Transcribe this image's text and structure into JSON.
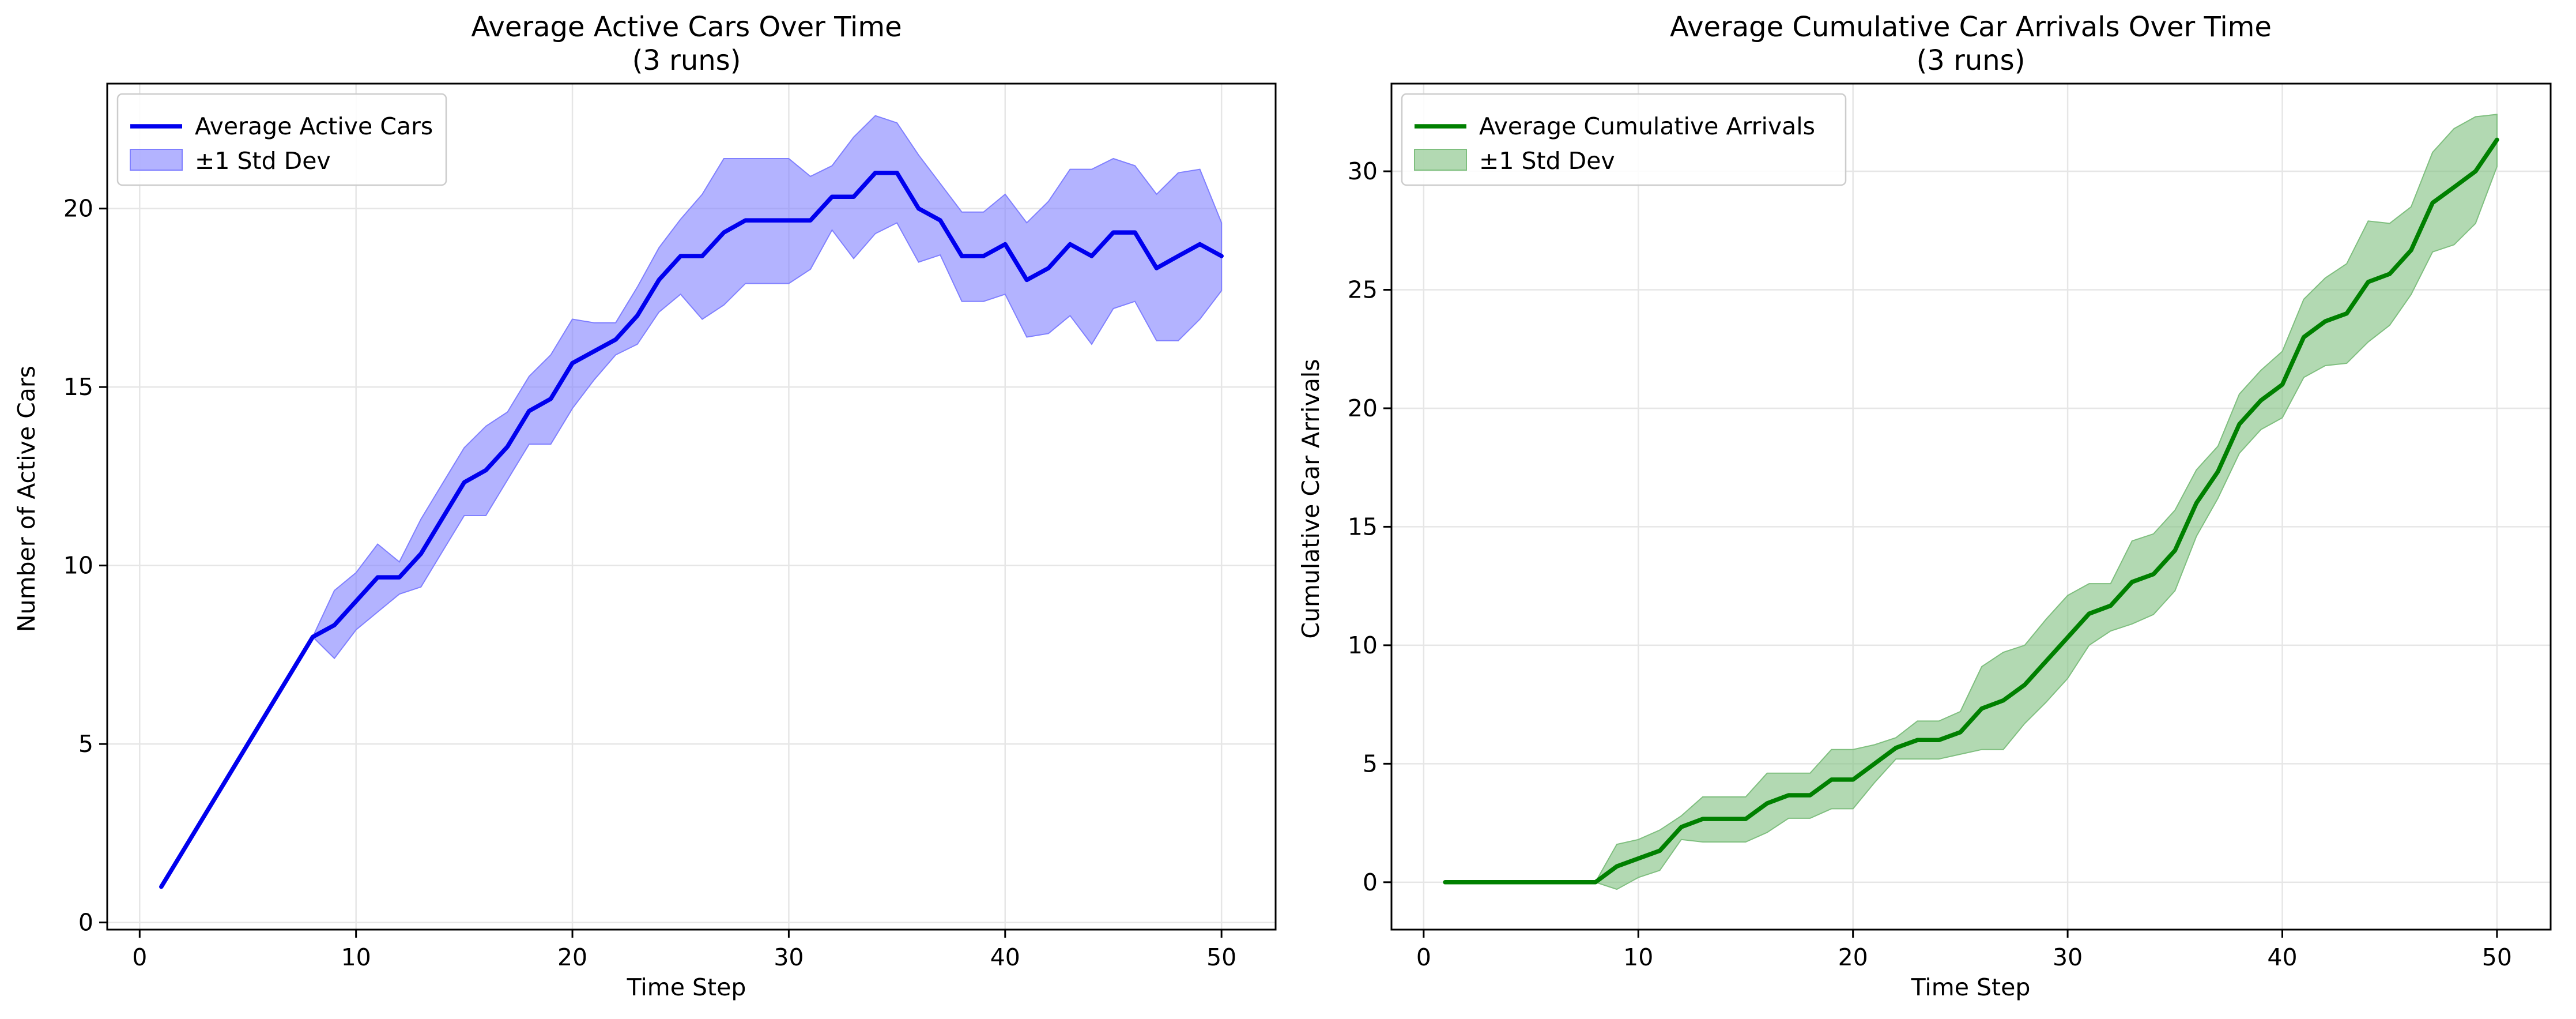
{
  "chart_data": [
    {
      "type": "line",
      "title_line1": "Average Active Cars Over Time",
      "title_line2": "(3 runs)",
      "xlabel": "Time Step",
      "ylabel": "Number of Active Cars",
      "xlim": [
        -1.5,
        52.5
      ],
      "ylim": [
        -0.2,
        23.5
      ],
      "xticks": [
        0,
        10,
        20,
        30,
        40,
        50
      ],
      "yticks": [
        0,
        5,
        10,
        15,
        20
      ],
      "grid": true,
      "legend_position": "upper left",
      "colors": {
        "line": "#0000ee",
        "band": "#8080ff"
      },
      "legend": {
        "line_label": "Average Active Cars",
        "band_label": "±1 Std Dev"
      },
      "series": [
        {
          "name": "Average Active Cars",
          "x": [
            1,
            2,
            3,
            4,
            5,
            6,
            7,
            8,
            9,
            10,
            11,
            12,
            13,
            14,
            15,
            16,
            17,
            18,
            19,
            20,
            21,
            22,
            23,
            24,
            25,
            26,
            27,
            28,
            29,
            30,
            31,
            32,
            33,
            34,
            35,
            36,
            37,
            38,
            39,
            40,
            41,
            42,
            43,
            44,
            45,
            46,
            47,
            48,
            49,
            50
          ],
          "y": [
            1,
            2,
            3,
            4,
            5,
            6,
            7,
            8,
            8.33,
            9,
            9.67,
            9.67,
            10.33,
            11.33,
            12.33,
            12.67,
            13.33,
            14.33,
            14.67,
            15.67,
            16,
            16.33,
            17,
            18,
            18.67,
            18.67,
            19.33,
            19.67,
            19.67,
            19.67,
            19.67,
            20.33,
            20.33,
            21,
            21,
            20,
            19.67,
            18.67,
            18.67,
            19,
            18,
            18.33,
            19,
            18.67,
            19.33,
            19.33,
            18.33,
            18.67,
            19,
            18.67
          ],
          "std_low": [
            1,
            2,
            3,
            4,
            5,
            6,
            7,
            8,
            7.4,
            8.2,
            8.7,
            9.2,
            9.4,
            10.4,
            11.4,
            11.4,
            12.4,
            13.4,
            13.4,
            14.4,
            15.2,
            15.9,
            16.2,
            17.1,
            17.6,
            16.9,
            17.3,
            17.9,
            17.9,
            17.9,
            18.3,
            19.4,
            18.6,
            19.3,
            19.6,
            18.5,
            18.7,
            17.4,
            17.4,
            17.6,
            16.4,
            16.5,
            17,
            16.2,
            17.2,
            17.4,
            16.3,
            16.3,
            16.9,
            17.7
          ],
          "std_high": [
            1,
            2,
            3,
            4,
            5,
            6,
            7,
            8,
            9.3,
            9.8,
            10.6,
            10.1,
            11.3,
            12.3,
            13.3,
            13.9,
            14.3,
            15.3,
            15.9,
            16.9,
            16.8,
            16.8,
            17.8,
            18.9,
            19.7,
            20.4,
            21.4,
            21.4,
            21.4,
            21.4,
            20.9,
            21.2,
            22,
            22.6,
            22.4,
            21.5,
            20.7,
            19.9,
            19.9,
            20.4,
            19.6,
            20.2,
            21.1,
            21.1,
            21.4,
            21.2,
            20.4,
            21,
            21.1,
            19.6
          ]
        }
      ]
    },
    {
      "type": "line",
      "title_line1": "Average Cumulative Car Arrivals Over Time",
      "title_line2": "(3 runs)",
      "xlabel": "Time Step",
      "ylabel": "Cumulative Car Arrivals",
      "xlim": [
        -1.5,
        52.5
      ],
      "ylim": [
        -2,
        33.7
      ],
      "xticks": [
        0,
        10,
        20,
        30,
        40,
        50
      ],
      "yticks": [
        0,
        5,
        10,
        15,
        20,
        25,
        30
      ],
      "grid": true,
      "legend_position": "upper left",
      "colors": {
        "line": "#008000",
        "band": "#7fbf7f"
      },
      "legend": {
        "line_label": "Average Cumulative Arrivals",
        "band_label": "±1 Std Dev"
      },
      "series": [
        {
          "name": "Average Cumulative Arrivals",
          "x": [
            1,
            2,
            3,
            4,
            5,
            6,
            7,
            8,
            9,
            10,
            11,
            12,
            13,
            14,
            15,
            16,
            17,
            18,
            19,
            20,
            21,
            22,
            23,
            24,
            25,
            26,
            27,
            28,
            29,
            30,
            31,
            32,
            33,
            34,
            35,
            36,
            37,
            38,
            39,
            40,
            41,
            42,
            43,
            44,
            45,
            46,
            47,
            48,
            49,
            50
          ],
          "y": [
            0,
            0,
            0,
            0,
            0,
            0,
            0,
            0,
            0.67,
            1,
            1.33,
            2.33,
            2.67,
            2.67,
            2.67,
            3.33,
            3.67,
            3.67,
            4.33,
            4.33,
            5,
            5.67,
            6,
            6,
            6.33,
            7.33,
            7.67,
            8.33,
            9.33,
            10.33,
            11.33,
            11.67,
            12.67,
            13,
            14,
            16,
            17.33,
            19.33,
            20.33,
            21,
            23,
            23.67,
            24,
            25.33,
            25.67,
            26.67,
            28.67,
            29.33,
            30,
            31.33
          ],
          "std_low": [
            0,
            0,
            0,
            0,
            0,
            0,
            0,
            0,
            -0.3,
            0.2,
            0.5,
            1.8,
            1.7,
            1.7,
            1.7,
            2.1,
            2.7,
            2.7,
            3.1,
            3.1,
            4.2,
            5.2,
            5.2,
            5.2,
            5.4,
            5.6,
            5.6,
            6.7,
            7.6,
            8.6,
            10,
            10.6,
            10.9,
            11.3,
            12.3,
            14.6,
            16.2,
            18.1,
            19.1,
            19.6,
            21.3,
            21.8,
            21.9,
            22.8,
            23.5,
            24.8,
            26.6,
            26.9,
            27.8,
            30.2
          ],
          "std_high": [
            0,
            0,
            0,
            0,
            0,
            0,
            0,
            0,
            1.6,
            1.8,
            2.2,
            2.8,
            3.6,
            3.6,
            3.6,
            4.6,
            4.6,
            4.6,
            5.6,
            5.6,
            5.8,
            6.1,
            6.8,
            6.8,
            7.2,
            9.1,
            9.7,
            10,
            11.1,
            12.1,
            12.6,
            12.6,
            14.4,
            14.7,
            15.7,
            17.4,
            18.4,
            20.6,
            21.6,
            22.4,
            24.6,
            25.5,
            26.1,
            27.9,
            27.8,
            28.5,
            30.8,
            31.8,
            32.3,
            32.4
          ]
        }
      ]
    }
  ]
}
